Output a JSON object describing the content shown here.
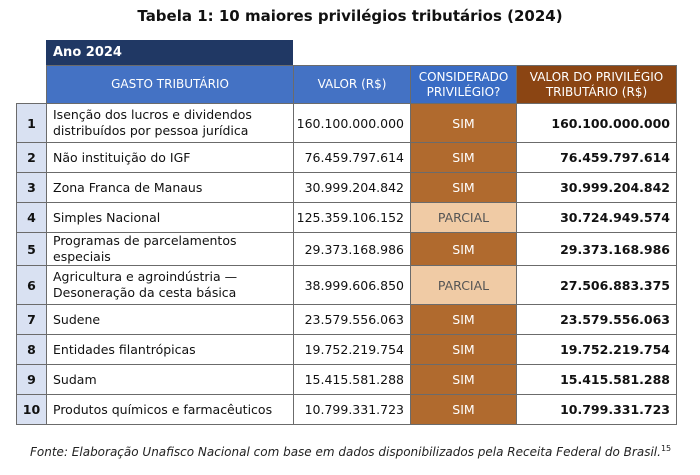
{
  "title": "Tabela 1: 10 maiores privilégios tributários (2024)",
  "year_label": "Ano 2024",
  "headers": {
    "gasto": "GASTO TRIBUTÁRIO",
    "valor": "VALOR (R$)",
    "considerado_l1": "CONSIDERADO",
    "considerado_l2": "PRIVILÉGIO?",
    "privilegio_l1": "VALOR DO PRIVILÉGIO",
    "privilegio_l2": "TRIBUTÁRIO (R$)"
  },
  "rows": [
    {
      "n": "1",
      "name_l1": "Isenção dos lucros e dividendos",
      "name_l2": "distribuídos por pessoa jurídica",
      "valor": "160.100.000.000",
      "flag": "SIM",
      "privilegio": "160.100.000.000"
    },
    {
      "n": "2",
      "name_l1": "Não instituição do IGF",
      "name_l2": "",
      "valor": "76.459.797.614",
      "flag": "SIM",
      "privilegio": "76.459.797.614"
    },
    {
      "n": "3",
      "name_l1": "Zona Franca de Manaus",
      "name_l2": "",
      "valor": "30.999.204.842",
      "flag": "SIM",
      "privilegio": "30.999.204.842"
    },
    {
      "n": "4",
      "name_l1": "Simples Nacional",
      "name_l2": "",
      "valor": "125.359.106.152",
      "flag": "PARCIAL",
      "privilegio": "30.724.949.574"
    },
    {
      "n": "5",
      "name_l1": "Programas de parcelamentos especiais",
      "name_l2": "",
      "valor": "29.373.168.986",
      "flag": "SIM",
      "privilegio": "29.373.168.986"
    },
    {
      "n": "6",
      "name_l1": "Agricultura e agroindústria —",
      "name_l2": "Desoneração da cesta básica",
      "valor": "38.999.606.850",
      "flag": "PARCIAL",
      "privilegio": "27.506.883.375"
    },
    {
      "n": "7",
      "name_l1": "Sudene",
      "name_l2": "",
      "valor": "23.579.556.063",
      "flag": "SIM",
      "privilegio": "23.579.556.063"
    },
    {
      "n": "8",
      "name_l1": "Entidades filantrópicas",
      "name_l2": "",
      "valor": "19.752.219.754",
      "flag": "SIM",
      "privilegio": "19.752.219.754"
    },
    {
      "n": "9",
      "name_l1": "Sudam",
      "name_l2": "",
      "valor": "15.415.581.288",
      "flag": "SIM",
      "privilegio": "15.415.581.288"
    },
    {
      "n": "10",
      "name_l1": "Produtos químicos e farmacêuticos",
      "name_l2": "",
      "valor": "10.799.331.723",
      "flag": "SIM",
      "privilegio": "10.799.331.723"
    }
  ],
  "source": "Fonte: Elaboração Unafisco Nacional com base em dados disponibilizados pela Receita Federal do Brasil.",
  "source_note": "15"
}
